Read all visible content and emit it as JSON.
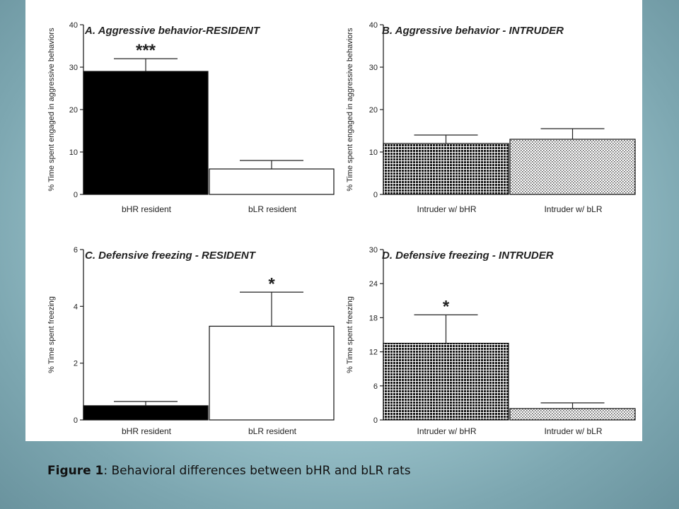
{
  "caption": {
    "label": "Figure 1",
    "text": ":  Behavioral differences between bHR and bLR rats"
  },
  "colors": {
    "panel_bg": "#ffffff",
    "bar_black": "#000000",
    "bar_white": "#ffffff",
    "axis": "#222222"
  },
  "chart_data": [
    {
      "type": "bar",
      "panel": "A",
      "title": "A. Aggressive behavior-RESIDENT",
      "ylabel": "% Time spent engaged in aggressive behaviors",
      "ylim": [
        0,
        40
      ],
      "yticks": [
        0,
        10,
        20,
        30,
        40
      ],
      "categories": [
        "bHR resident",
        "bLR resident"
      ],
      "values": [
        29,
        6
      ],
      "errors": [
        3,
        2
      ],
      "fills": [
        "black",
        "white"
      ],
      "significance": [
        "***",
        ""
      ]
    },
    {
      "type": "bar",
      "panel": "B",
      "title": "B. Aggressive behavior - INTRUDER",
      "ylabel": "% Time spent engaged in aggressive behaviors",
      "ylim": [
        0,
        40
      ],
      "yticks": [
        0,
        10,
        20,
        30,
        40
      ],
      "categories": [
        "Intruder w/ bHR",
        "Intruder w/ bLR"
      ],
      "values": [
        12,
        13
      ],
      "errors": [
        2,
        2.5
      ],
      "fills": [
        "grid",
        "dots"
      ],
      "significance": [
        "",
        ""
      ]
    },
    {
      "type": "bar",
      "panel": "C",
      "title": "C. Defensive freezing - RESIDENT",
      "ylabel": "% Time spent freezing",
      "ylim": [
        0,
        6
      ],
      "yticks": [
        0,
        2,
        4,
        6
      ],
      "categories": [
        "bHR resident",
        "bLR resident"
      ],
      "values": [
        0.5,
        3.3
      ],
      "errors": [
        0.15,
        1.2
      ],
      "fills": [
        "black",
        "white"
      ],
      "significance": [
        "",
        "*"
      ]
    },
    {
      "type": "bar",
      "panel": "D",
      "title": "D. Defensive freezing - INTRUDER",
      "ylabel": "% Time spent freezing",
      "ylim": [
        0,
        30
      ],
      "yticks": [
        0,
        6,
        12,
        18,
        24,
        30
      ],
      "categories": [
        "Intruder w/ bHR",
        "Intruder w/ bLR"
      ],
      "values": [
        13.5,
        2
      ],
      "errors": [
        5,
        1
      ],
      "fills": [
        "grid",
        "dots"
      ],
      "significance": [
        "*",
        ""
      ]
    }
  ]
}
